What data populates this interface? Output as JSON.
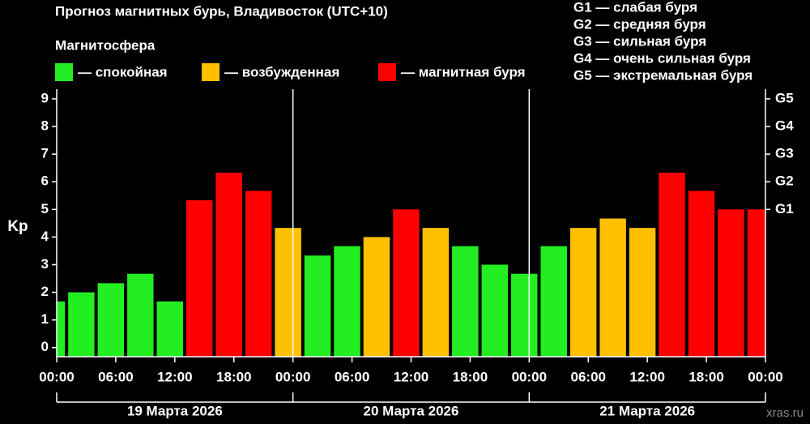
{
  "chart_data": {
    "type": "bar",
    "title": "Прогноз магнитных бурь, Владивосток (UTC+10)",
    "legend_title": "Магнитосфера",
    "legend": [
      {
        "label": "— спокойная",
        "color": "#22ee22"
      },
      {
        "label": "— возбужденная",
        "color": "#ffc000"
      },
      {
        "label": "— магнитная буря",
        "color": "#ff0000"
      }
    ],
    "storm_levels": [
      "G1 — слабая буря",
      "G2 — средняя буря",
      "G3 — сильная буря",
      "G4 — очень сильная буря",
      "G5 — экстремальная буря"
    ],
    "y_label": "Kp",
    "x": [
      -2,
      1,
      4,
      7,
      10,
      13,
      16,
      19,
      22,
      25,
      28,
      31,
      34,
      37,
      40,
      43,
      46,
      49,
      52,
      55,
      58,
      61,
      64,
      67,
      70
    ],
    "bar_width": 3,
    "values": [
      1.67,
      2,
      2.33,
      2.67,
      1.67,
      5.33,
      6.33,
      5.67,
      4.33,
      3.33,
      3.67,
      4,
      5,
      4.33,
      3.67,
      3,
      2.67,
      3.67,
      4.33,
      4.67,
      4.33,
      6.33,
      5.67,
      5,
      5
    ],
    "colors": [
      "#22ee22",
      "#22ee22",
      "#22ee22",
      "#22ee22",
      "#22ee22",
      "#ff0000",
      "#ff0000",
      "#ff0000",
      "#ffc000",
      "#22ee22",
      "#22ee22",
      "#ffc000",
      "#ff0000",
      "#ffc000",
      "#22ee22",
      "#22ee22",
      "#22ee22",
      "#22ee22",
      "#ffc000",
      "#ffc000",
      "#ffc000",
      "#ff0000",
      "#ff0000",
      "#ff0000",
      "#ff0000"
    ],
    "xlim": [
      0,
      72
    ],
    "xticks": [
      {
        "value": 0,
        "label": "00:00"
      },
      {
        "value": 6,
        "label": "06:00"
      },
      {
        "value": 12,
        "label": "12:00"
      },
      {
        "value": 18,
        "label": "18:00"
      },
      {
        "value": 24,
        "label": "00:00"
      },
      {
        "value": 30,
        "label": "06:00"
      },
      {
        "value": 36,
        "label": "12:00"
      },
      {
        "value": 42,
        "label": "18:00"
      },
      {
        "value": 48,
        "label": "00:00"
      },
      {
        "value": 54,
        "label": "06:00"
      },
      {
        "value": 60,
        "label": "12:00"
      },
      {
        "value": 66,
        "label": "18:00"
      },
      {
        "value": 72,
        "label": "00:00"
      }
    ],
    "day_boundaries": [
      0,
      24,
      48,
      72
    ],
    "day_labels": [
      "19 Марта 2026",
      "20 Марта 2026",
      "21 Марта 2026"
    ],
    "ylim": [
      -0.33,
      9.35
    ],
    "yticks": [
      0,
      1,
      2,
      3,
      4,
      5,
      6,
      7,
      8,
      9
    ],
    "y2lim": [
      -0.33,
      9.35
    ],
    "y2ticks": [
      {
        "value": 5,
        "label": "G1"
      },
      {
        "value": 6,
        "label": "G2"
      },
      {
        "value": 7,
        "label": "G3"
      },
      {
        "value": 8,
        "label": "G4"
      },
      {
        "value": 9,
        "label": "G5"
      }
    ],
    "watermark": "xras.ru"
  }
}
